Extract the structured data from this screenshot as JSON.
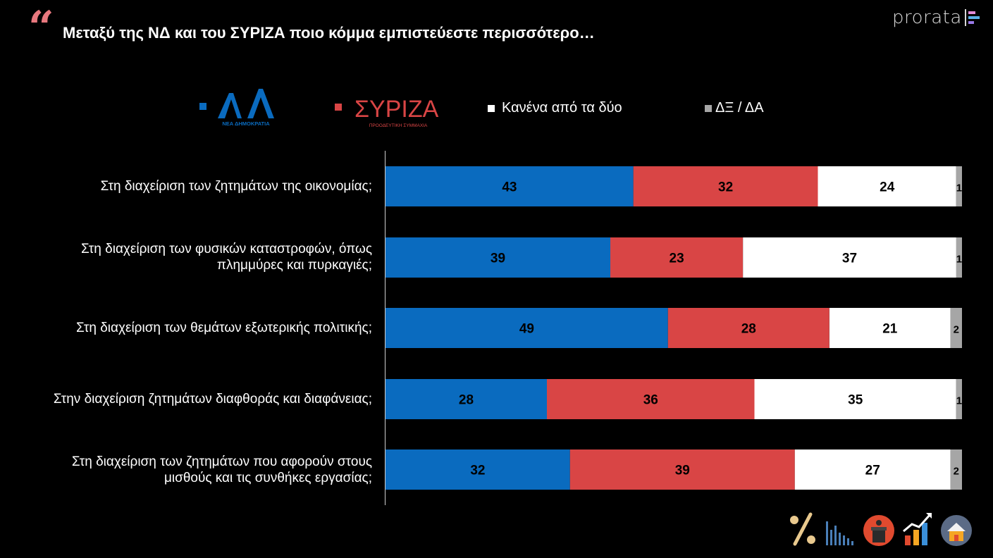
{
  "header": {
    "quote_mark": "“",
    "title": "Μεταξύ της ΝΔ και του ΣΥΡΙΖΑ ποιο κόμμα εμπιστεύεστε περισσότερο…"
  },
  "brand": {
    "name": "prorata"
  },
  "legend": [
    {
      "key": "nd",
      "logo_main": "ΝΔ",
      "logo_sub": "ΝΕΑ ΔΗΜΟΚΡΑΤΙΑ",
      "color": "#0a6bbf"
    },
    {
      "key": "syriza",
      "logo_main": "ΣΥΡΙΖΑ",
      "logo_sub": "ΠΡΟΟΔΕΥΤΙΚΗ ΣΥΜΜΑΧΙΑ",
      "color": "#d94545"
    },
    {
      "key": "none",
      "label": "Κανένα από τα δύο",
      "color": "#ffffff"
    },
    {
      "key": "dk",
      "label": "ΔΞ / ΔΑ",
      "color": "#a6a6a6"
    }
  ],
  "chart_data": {
    "type": "bar",
    "orientation": "horizontal",
    "stacked": true,
    "title": "Μεταξύ της ΝΔ και του ΣΥΡΙΖΑ ποιο κόμμα εμπιστεύεστε περισσότερο…",
    "xlim": [
      0,
      100
    ],
    "categories": [
      "Στη διαχείριση των ζητημάτων της οικονομίας;",
      "Στη διαχείριση των φυσικών καταστροφών, όπως πλημμύρες και πυρκαγιές;",
      "Στη διαχείριση των θεμάτων εξωτερικής πολιτικής;",
      "Στην διαχείριση ζητημάτων διαφθοράς και διαφάνειας;",
      "Στη διαχείριση των ζητημάτων που αφορούν στους μισθούς και τις συνθήκες εργασίας;"
    ],
    "category_lines": [
      [
        "Στη διαχείριση των ζητημάτων της οικονομίας;"
      ],
      [
        "Στη διαχείριση των φυσικών καταστροφών, όπως",
        "πλημμύρες και πυρκαγιές;"
      ],
      [
        "Στη διαχείριση των θεμάτων εξωτερικής πολιτικής;"
      ],
      [
        "Στην διαχείριση ζητημάτων διαφθοράς και διαφάνειας;"
      ],
      [
        "Στη διαχείριση των ζητημάτων που αφορούν στους",
        "μισθούς και τις συνθήκες εργασίας;"
      ]
    ],
    "series": [
      {
        "name": "ΝΔ",
        "color": "#0a6bbf",
        "label_color": "#000000",
        "values": [
          43,
          39,
          49,
          28,
          32
        ]
      },
      {
        "name": "ΣΥΡΙΖΑ",
        "color": "#d94545",
        "label_color": "#000000",
        "values": [
          32,
          23,
          28,
          36,
          39
        ]
      },
      {
        "name": "Κανένα από τα δύο",
        "color": "#ffffff",
        "label_color": "#000000",
        "values": [
          24,
          37,
          21,
          35,
          27
        ]
      },
      {
        "name": "ΔΞ / ΔΑ",
        "color": "#a6a6a6",
        "label_color": "#000000",
        "values": [
          1,
          1,
          2,
          1,
          2
        ]
      }
    ]
  },
  "icons": [
    "percent-icon",
    "bar-equalizer-icon",
    "podium-icon",
    "growth-chart-icon",
    "house-icon"
  ],
  "colors": {
    "background": "#000000",
    "quote": "#e8787e",
    "axis": "#cfcfcf"
  }
}
